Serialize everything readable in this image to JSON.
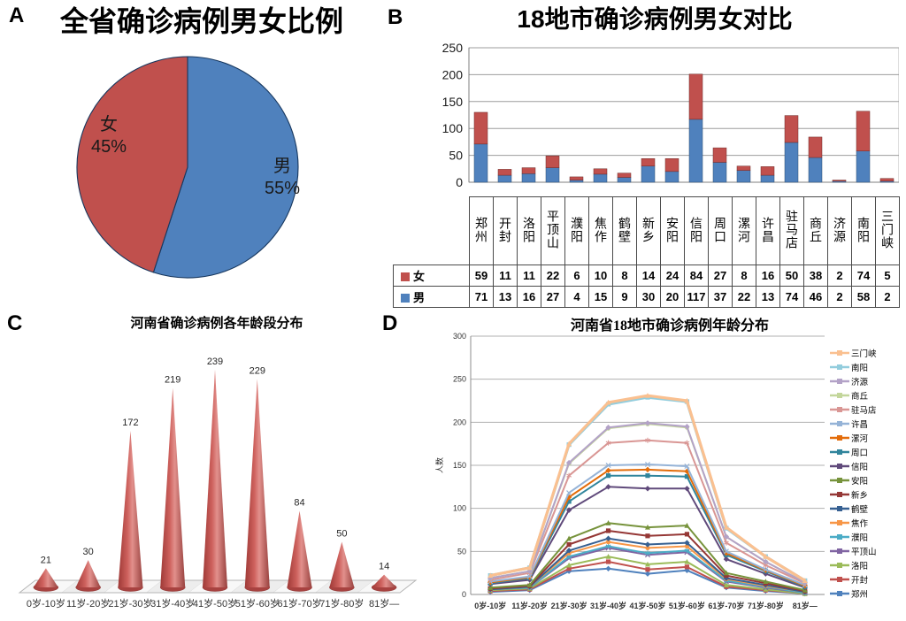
{
  "panels": {
    "a": {
      "letter": "A"
    },
    "b": {
      "letter": "B"
    },
    "c": {
      "letter": "C"
    },
    "d": {
      "letter": "D"
    }
  },
  "chart_data": [
    {
      "id": "pie-province-gender-ratio",
      "panel": "A",
      "type": "pie",
      "title": "全省确诊病例男女比例",
      "start_angle_deg": 0,
      "direction": "clockwise",
      "slices": [
        {
          "label": "男",
          "pct_label": "55%",
          "value": 55,
          "color": "#4F81BD"
        },
        {
          "label": "女",
          "pct_label": "45%",
          "value": 45,
          "color": "#C0504D"
        }
      ]
    },
    {
      "id": "bar-18-cities-gender",
      "panel": "B",
      "type": "bar",
      "subtype": "stacked-column-with-data-table",
      "title": "18地市确诊病例男女对比",
      "categories": [
        "郑州",
        "开封",
        "洛阳",
        "平顶山",
        "濮阳",
        "焦作",
        "鹤壁",
        "新乡",
        "安阳",
        "信阳",
        "周口",
        "漯河",
        "许昌",
        "驻马店",
        "商丘",
        "济源",
        "南阳",
        "三门峡"
      ],
      "series": [
        {
          "name": "男",
          "color": "#4F81BD",
          "values": [
            71,
            13,
            16,
            27,
            4,
            15,
            9,
            30,
            20,
            117,
            37,
            22,
            13,
            74,
            46,
            2,
            58,
            2
          ]
        },
        {
          "name": "女",
          "color": "#C0504D",
          "values": [
            59,
            11,
            11,
            22,
            6,
            10,
            8,
            14,
            24,
            84,
            27,
            8,
            16,
            50,
            38,
            2,
            74,
            5
          ]
        }
      ],
      "stack_order_bottom_to_top": [
        "男",
        "女"
      ],
      "table_row_order": [
        "女",
        "男"
      ],
      "ylim": [
        0,
        250
      ],
      "ytick_step": 50,
      "yticks": [
        0,
        50,
        100,
        150,
        200,
        250
      ],
      "grid": true,
      "legend_position": "table-left"
    },
    {
      "id": "cone-province-age-distribution",
      "panel": "C",
      "type": "bar",
      "subtype": "3d-cone",
      "title": "河南省确诊病例各年龄段分布",
      "categories": [
        "0岁-10岁",
        "11岁-20岁",
        "21岁-30岁",
        "31岁-40岁",
        "41岁-50岁",
        "51岁-60岁",
        "61岁-70岁",
        "71岁-80岁",
        "81岁—"
      ],
      "values": [
        21,
        30,
        172,
        219,
        239,
        229,
        84,
        50,
        14
      ],
      "color": "#C0504D",
      "data_labels": true,
      "grid": false
    },
    {
      "id": "line-18-cities-age-distribution",
      "panel": "D",
      "type": "line",
      "subtype": "stacked-line-with-markers",
      "title": "河南省18地市确诊病例年龄分布",
      "ylabel": "人数",
      "categories": [
        "0岁-10岁",
        "11岁-20岁",
        "21岁-30岁",
        "31岁-40岁",
        "41岁-50岁",
        "51岁-60岁",
        "61岁-70岁",
        "71岁-80岁",
        "81岁—"
      ],
      "ylim": [
        0,
        300
      ],
      "ytick_step": 50,
      "yticks": [
        0,
        50,
        100,
        150,
        200,
        250,
        300
      ],
      "grid": true,
      "legend_position": "right",
      "legend_order": "top-series-first",
      "stacking": "cumulative-bottom-to-top",
      "series": [
        {
          "name": "郑州",
          "color": "#4F81BD",
          "marker": "diamond",
          "values": [
            3,
            5,
            27,
            30,
            24,
            28,
            8,
            4,
            1
          ]
        },
        {
          "name": "开封",
          "color": "#C0504D",
          "marker": "square",
          "values": [
            1,
            1,
            3,
            8,
            5,
            4,
            1,
            1,
            0
          ]
        },
        {
          "name": "洛阳",
          "color": "#9BBB59",
          "marker": "triangle",
          "values": [
            1,
            1,
            4,
            6,
            6,
            6,
            2,
            1,
            0
          ]
        },
        {
          "name": "平顶山",
          "color": "#8064A2",
          "marker": "x",
          "values": [
            1,
            1,
            8,
            10,
            11,
            11,
            4,
            2,
            1
          ]
        },
        {
          "name": "濮阳",
          "color": "#4BACC6",
          "marker": "asterisk",
          "values": [
            0,
            0,
            2,
            2,
            2,
            2,
            1,
            1,
            0
          ]
        },
        {
          "name": "焦作",
          "color": "#F79646",
          "marker": "circle",
          "values": [
            0,
            1,
            4,
            5,
            6,
            5,
            2,
            1,
            1
          ]
        },
        {
          "name": "鹤壁",
          "color": "#366092",
          "marker": "diamond",
          "values": [
            0,
            0,
            3,
            4,
            4,
            4,
            1,
            1,
            0
          ]
        },
        {
          "name": "新乡",
          "color": "#953735",
          "marker": "square",
          "values": [
            1,
            1,
            7,
            9,
            10,
            10,
            3,
            2,
            1
          ]
        },
        {
          "name": "安阳",
          "color": "#77933C",
          "marker": "triangle",
          "values": [
            1,
            1,
            7,
            9,
            10,
            10,
            3,
            2,
            1
          ]
        },
        {
          "name": "信阳",
          "color": "#604A7B",
          "marker": "diamond",
          "values": [
            4,
            6,
            33,
            42,
            45,
            43,
            16,
            9,
            3
          ]
        },
        {
          "name": "周口",
          "color": "#31859C",
          "marker": "square",
          "values": [
            1,
            2,
            10,
            13,
            15,
            14,
            5,
            3,
            1
          ]
        },
        {
          "name": "漯河",
          "color": "#E36C0A",
          "marker": "diamond",
          "values": [
            1,
            1,
            5,
            6,
            7,
            6,
            2,
            1,
            1
          ]
        },
        {
          "name": "许昌",
          "color": "#95B3D7",
          "marker": "x",
          "values": [
            1,
            1,
            5,
            6,
            6,
            6,
            2,
            1,
            1
          ]
        },
        {
          "name": "驻马店",
          "color": "#D99694",
          "marker": "asterisk",
          "values": [
            2,
            4,
            20,
            26,
            28,
            27,
            10,
            5,
            2
          ]
        },
        {
          "name": "商丘",
          "color": "#C3D69B",
          "marker": "circle",
          "values": [
            2,
            2,
            14,
            17,
            19,
            18,
            7,
            4,
            1
          ]
        },
        {
          "name": "济源",
          "color": "#B3A2C7",
          "marker": "diamond",
          "values": [
            0,
            0,
            1,
            1,
            1,
            1,
            0,
            0,
            0
          ]
        },
        {
          "name": "南阳",
          "color": "#93CDDD",
          "marker": "square",
          "values": [
            3,
            4,
            21,
            27,
            30,
            29,
            10,
            6,
            2
          ]
        },
        {
          "name": "三门峡",
          "color": "#FAC090",
          "marker": "triangle",
          "values": [
            0,
            0,
            1,
            2,
            2,
            1,
            1,
            0,
            0
          ]
        }
      ]
    }
  ]
}
